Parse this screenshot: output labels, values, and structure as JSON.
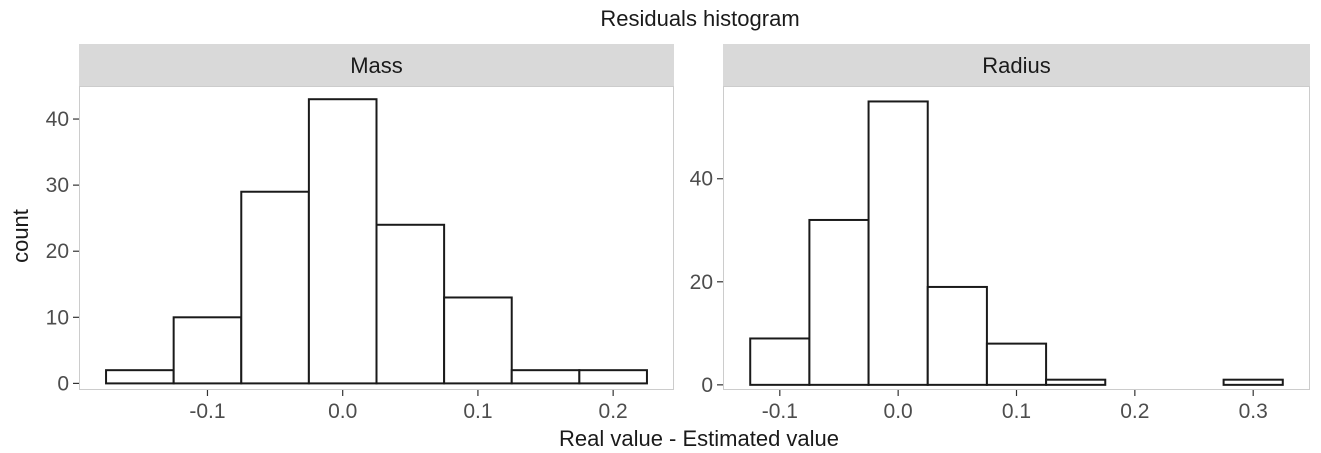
{
  "chart_data": {
    "type": "bar",
    "title": "Residuals histogram",
    "xlabel": "Real value - Estimated value",
    "ylabel": "count",
    "grid": false,
    "panels": [
      {
        "strip": "Mass",
        "bin_width": 0.05,
        "bins": [
          {
            "x0": -0.175,
            "x1": -0.125,
            "count": 2
          },
          {
            "x0": -0.125,
            "x1": -0.075,
            "count": 10
          },
          {
            "x0": -0.075,
            "x1": -0.025,
            "count": 29
          },
          {
            "x0": -0.025,
            "x1": 0.025,
            "count": 43
          },
          {
            "x0": 0.025,
            "x1": 0.075,
            "count": 24
          },
          {
            "x0": 0.075,
            "x1": 0.125,
            "count": 13
          },
          {
            "x0": 0.125,
            "x1": 0.175,
            "count": 2
          },
          {
            "x0": 0.175,
            "x1": 0.225,
            "count": 2
          }
        ],
        "xlim": [
          -0.195,
          0.245
        ],
        "ylim": [
          -1,
          45
        ],
        "xticks": [
          -0.1,
          0.0,
          0.1,
          0.2
        ],
        "xtick_labels": [
          "-0.1",
          "0.0",
          "0.1",
          "0.2"
        ],
        "yticks": [
          0,
          10,
          20,
          30,
          40
        ],
        "ytick_labels": [
          "0",
          "10",
          "20",
          "30",
          "40"
        ]
      },
      {
        "strip": "Radius",
        "bin_width": 0.05,
        "bins": [
          {
            "x0": -0.125,
            "x1": -0.075,
            "count": 9
          },
          {
            "x0": -0.075,
            "x1": -0.025,
            "count": 32
          },
          {
            "x0": -0.025,
            "x1": 0.025,
            "count": 55
          },
          {
            "x0": 0.025,
            "x1": 0.075,
            "count": 19
          },
          {
            "x0": 0.075,
            "x1": 0.125,
            "count": 8
          },
          {
            "x0": 0.125,
            "x1": 0.175,
            "count": 1
          },
          {
            "x0": 0.175,
            "x1": 0.225,
            "count": 0
          },
          {
            "x0": 0.225,
            "x1": 0.275,
            "count": 0
          },
          {
            "x0": 0.275,
            "x1": 0.325,
            "count": 1
          }
        ],
        "xlim": [
          -0.148,
          0.348
        ],
        "ylim": [
          -1,
          58
        ],
        "xticks": [
          -0.1,
          0.0,
          0.1,
          0.2,
          0.3
        ],
        "xtick_labels": [
          "-0.1",
          "0.0",
          "0.1",
          "0.2",
          "0.3"
        ],
        "yticks": [
          0,
          20,
          40
        ],
        "ytick_labels": [
          "0",
          "20",
          "40"
        ]
      }
    ],
    "colors": {
      "bar_fill": "#ffffff",
      "bar_stroke": "#1a1a1a",
      "strip_fill": "#d9d9d9",
      "panel_border": "#cccccc"
    }
  }
}
